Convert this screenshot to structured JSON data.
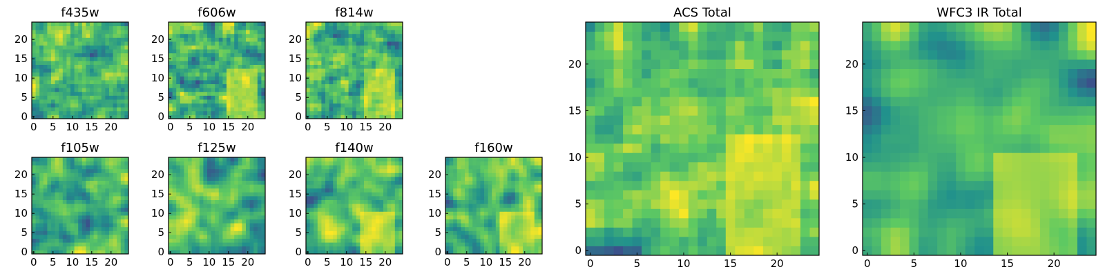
{
  "figure": {
    "colormap_name": "viridis",
    "colormap_stops": [
      "#440154",
      "#3b528b",
      "#21918c",
      "#5ec962",
      "#fde725"
    ]
  },
  "chart_data": [
    {
      "type": "heatmap",
      "id": "f435w",
      "title": "f435w",
      "grid": [
        25,
        25
      ],
      "seed": 11,
      "smooth": 0.15,
      "xticks": [
        0,
        5,
        10,
        15,
        20
      ],
      "yticks": [
        0,
        5,
        10,
        15,
        20
      ],
      "ylim": [
        0,
        24
      ]
    },
    {
      "type": "heatmap",
      "id": "f606w",
      "title": "f606w",
      "grid": [
        25,
        25
      ],
      "seed": 23,
      "smooth": 0.25,
      "bright_region": [
        15,
        22,
        0,
        12
      ],
      "xticks": [
        0,
        5,
        10,
        15,
        20
      ],
      "yticks": [
        0,
        5,
        10,
        15,
        20
      ],
      "ylim": [
        0,
        24
      ]
    },
    {
      "type": "heatmap",
      "id": "f814w",
      "title": "f814w",
      "grid": [
        25,
        25
      ],
      "seed": 37,
      "smooth": 0.3,
      "bright_region": [
        15,
        22,
        0,
        12
      ],
      "xticks": [
        0,
        5,
        10,
        15,
        20
      ],
      "yticks": [
        0,
        5,
        10,
        15,
        20
      ],
      "ylim": [
        0,
        24
      ]
    },
    {
      "type": "heatmap",
      "id": "f105w",
      "title": "f105w",
      "grid": [
        25,
        25
      ],
      "seed": 41,
      "smooth": 0.55,
      "xticks": [
        0,
        5,
        10,
        15,
        20
      ],
      "yticks": [
        0,
        5,
        10,
        15,
        20
      ],
      "ylim": [
        0,
        24
      ]
    },
    {
      "type": "heatmap",
      "id": "f125w",
      "title": "f125w",
      "grid": [
        25,
        25
      ],
      "seed": 53,
      "smooth": 0.55,
      "xticks": [
        0,
        5,
        10,
        15,
        20
      ],
      "yticks": [
        0,
        5,
        10,
        15,
        20
      ],
      "ylim": [
        0,
        24
      ]
    },
    {
      "type": "heatmap",
      "id": "f140w",
      "title": "f140w",
      "grid": [
        25,
        25
      ],
      "seed": 67,
      "smooth": 0.55,
      "bright_region": [
        14,
        22,
        0,
        10
      ],
      "xticks": [
        0,
        5,
        10,
        15,
        20
      ],
      "yticks": [
        0,
        5,
        10,
        15,
        20
      ],
      "ylim": [
        0,
        24
      ]
    },
    {
      "type": "heatmap",
      "id": "f160w",
      "title": "f160w",
      "grid": [
        25,
        25
      ],
      "seed": 79,
      "smooth": 0.55,
      "bright_region": [
        14,
        22,
        0,
        10
      ],
      "xticks": [
        0,
        5,
        10,
        15,
        20
      ],
      "yticks": [
        0,
        5,
        10,
        15,
        20
      ],
      "ylim": [
        0,
        24
      ]
    },
    {
      "type": "heatmap",
      "id": "acs_total",
      "title": "ACS Total",
      "grid": [
        25,
        25
      ],
      "seed": 97,
      "smooth": 0.3,
      "bright_region": [
        15,
        22,
        0,
        12
      ],
      "xticks": [
        0,
        5,
        10,
        15,
        20
      ],
      "yticks": [
        0,
        5,
        10,
        15,
        20
      ],
      "ylim": [
        0,
        24
      ]
    },
    {
      "type": "heatmap",
      "id": "wfc3_ir_total",
      "title": "WFC3 IR Total",
      "grid": [
        25,
        25
      ],
      "seed": 113,
      "smooth": 0.65,
      "bright_region": [
        14,
        22,
        0,
        10
      ],
      "xticks": [
        0,
        5,
        10,
        15,
        20
      ],
      "yticks": [
        0,
        5,
        10,
        15,
        20
      ],
      "ylim": [
        0,
        24
      ]
    }
  ]
}
